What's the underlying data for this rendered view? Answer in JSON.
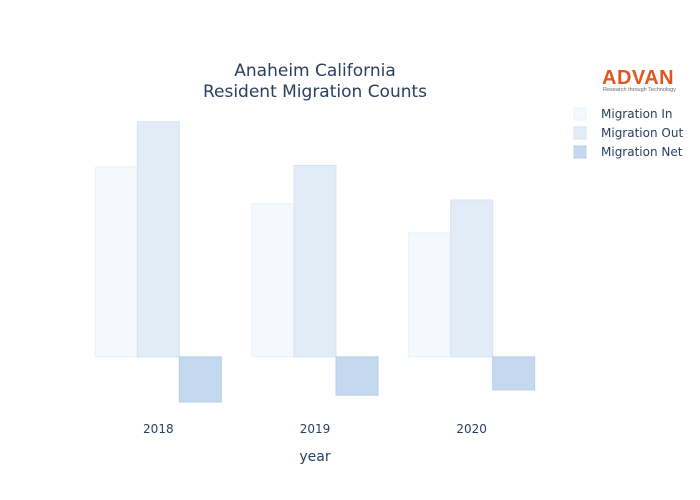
{
  "logo": {
    "name": "ADVAN",
    "tagline": "Research through Technology"
  },
  "colors": {
    "title": "#2a3f5f",
    "logo": "#e2561f"
  },
  "chart_data": {
    "type": "bar",
    "title_lines": [
      "Anaheim California",
      "Resident Migration Counts"
    ],
    "xlabel": "year",
    "ylabel": "",
    "categories": [
      "2018",
      "2019",
      "2020"
    ],
    "series": [
      {
        "name": "Migration In",
        "values": [
          5000,
          4030,
          3260
        ],
        "color": "#f5f9fd",
        "stroke": "#e9f1fa"
      },
      {
        "name": "Migration Out",
        "values": [
          6190,
          5040,
          4130
        ],
        "color": "#e2ecf7",
        "stroke": "#d5e3f2"
      },
      {
        "name": "Migration Net",
        "values": [
          -1190,
          -1010,
          -870
        ],
        "color": "#c4d9ee",
        "stroke": "#b5cfe9"
      }
    ],
    "ylim": [
      -1400,
      6500
    ],
    "legend_position": "top-right",
    "grid": false,
    "y_ticks_visible": false
  }
}
